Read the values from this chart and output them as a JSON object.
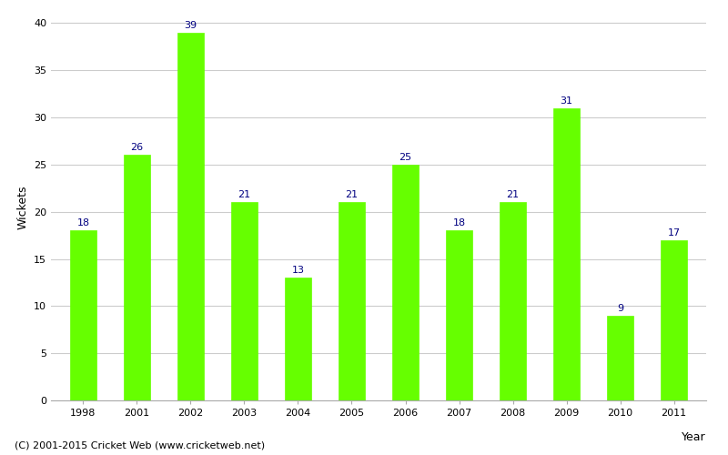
{
  "years": [
    "1998",
    "2001",
    "2002",
    "2003",
    "2004",
    "2005",
    "2006",
    "2007",
    "2008",
    "2009",
    "2010",
    "2011"
  ],
  "wickets": [
    18,
    26,
    39,
    21,
    13,
    21,
    25,
    18,
    21,
    31,
    9,
    17
  ],
  "bar_color": "#66ff00",
  "bar_edge_color": "#66ff00",
  "label_color": "#000080",
  "ylabel": "Wickets",
  "xlabel": "Year",
  "ylim": [
    0,
    41
  ],
  "yticks": [
    0,
    5,
    10,
    15,
    20,
    25,
    30,
    35,
    40
  ],
  "background_color": "#ffffff",
  "grid_color": "#cccccc",
  "footnote": "(C) 2001-2015 Cricket Web (www.cricketweb.net)",
  "label_fontsize": 8,
  "axis_label_fontsize": 9,
  "tick_fontsize": 8,
  "footnote_fontsize": 8,
  "bar_width": 0.5
}
